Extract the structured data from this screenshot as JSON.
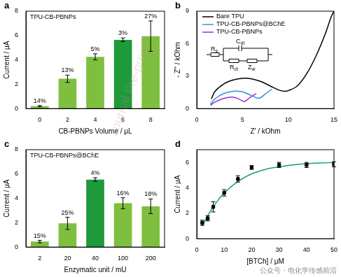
{
  "chart_data": [
    {
      "type": "bar",
      "panel_label": "a",
      "annotation": "TPU-CB-PBNPs",
      "x_label": "CB-PBNPs Volume / μL",
      "y_label": "Current / μA",
      "categories": [
        0,
        2,
        4,
        6,
        8
      ],
      "values": [
        0.2,
        2.45,
        4.25,
        5.65,
        5.95
      ],
      "errors": [
        0.05,
        0.3,
        0.25,
        0.15,
        1.25
      ],
      "rsd_labels": [
        "14%",
        "13%",
        "5%",
        "3%",
        "27%"
      ],
      "colors": [
        "#7fbf3f",
        "#7fbf3f",
        "#7fbf3f",
        "#1f9a3a",
        "#7fbf3f"
      ],
      "ylim": [
        0,
        8
      ],
      "yticks": [
        0,
        2,
        4,
        6,
        8
      ],
      "grid": false
    },
    {
      "type": "line",
      "panel_label": "b",
      "x_label": "Z' / kOhm",
      "y_label": "- Z'' / kOhm",
      "xlim": [
        0,
        15
      ],
      "xticks": [
        0,
        5,
        10,
        15
      ],
      "ylim": [
        0,
        9
      ],
      "yticks": [
        0,
        3,
        6,
        9
      ],
      "legend": "upper left",
      "grid": false,
      "circuit_labels": [
        "Rs",
        "Cdl",
        "Rct",
        "Zw"
      ],
      "series": [
        {
          "name": "Bare TPU",
          "color": "#000000",
          "marker": "none",
          "x": [
            1.6,
            2.0,
            3.0,
            4.0,
            5.0,
            6.0,
            7.0,
            8.0,
            9.0,
            9.6,
            10.0,
            11.0,
            12.0,
            13.0,
            14.0,
            14.7,
            15.0
          ],
          "values": [
            0.9,
            1.6,
            2.3,
            2.65,
            2.8,
            2.75,
            2.5,
            2.1,
            1.7,
            1.6,
            1.65,
            2.1,
            3.2,
            4.8,
            6.8,
            8.5,
            9.0
          ]
        },
        {
          "name": "TPU-CB-PBNPs@BChE",
          "color": "#3a8fd9",
          "marker": "none",
          "x": [
            1.5,
            2.0,
            3.0,
            4.0,
            5.0,
            6.0,
            6.8,
            7.5,
            8.2
          ],
          "values": [
            0.4,
            0.9,
            1.4,
            1.6,
            1.55,
            1.2,
            0.95,
            1.35,
            1.8
          ]
        },
        {
          "name": "TPU-CB-PBNPs",
          "color": "#9b30d9",
          "marker": "none",
          "x": [
            1.5,
            2.0,
            3.0,
            4.0,
            4.8,
            5.2,
            5.8,
            6.5
          ],
          "values": [
            0.3,
            0.6,
            0.95,
            1.05,
            0.8,
            0.65,
            1.0,
            1.4
          ]
        }
      ]
    },
    {
      "type": "bar",
      "panel_label": "c",
      "annotation": "TPU-CB-PBNPs@BChE",
      "x_label": "Enzymatic unit / mU",
      "y_label": "Current / μA",
      "categories": [
        2,
        20,
        40,
        100,
        200
      ],
      "values": [
        0.45,
        1.95,
        5.55,
        3.6,
        3.35
      ],
      "errors": [
        0.1,
        0.5,
        0.15,
        0.45,
        0.6
      ],
      "rsd_labels": [
        "15%",
        "25%",
        "4%",
        "16%",
        "18%"
      ],
      "colors": [
        "#7fbf3f",
        "#7fbf3f",
        "#1f9a3a",
        "#7fbf3f",
        "#7fbf3f"
      ],
      "ylim": [
        0,
        8
      ],
      "yticks": [
        0,
        2,
        4,
        6,
        8
      ],
      "grid": false
    },
    {
      "type": "scatter",
      "panel_label": "d",
      "x_label": "[BTCh] / μM",
      "y_label": "Current / μA",
      "xlim": [
        0,
        50
      ],
      "xticks": [
        0,
        10,
        20,
        30,
        40,
        50
      ],
      "ylim": [
        0,
        7
      ],
      "yticks": [
        0,
        2,
        4,
        6
      ],
      "grid": false,
      "series": [
        {
          "type": "scatter",
          "color": "#000000",
          "marker": "square",
          "x": [
            2,
            4,
            6,
            10,
            15,
            20,
            30,
            40,
            50
          ],
          "values": [
            1.25,
            1.6,
            2.5,
            3.6,
            4.7,
            5.6,
            5.8,
            5.8,
            5.85
          ],
          "errors": [
            0.2,
            0.2,
            0.4,
            0.25,
            0.25,
            0.15,
            0.2,
            0.2,
            0.2
          ]
        },
        {
          "type": "line",
          "color": "#1a9e77",
          "marker": "none",
          "x": [
            2,
            4,
            6,
            8,
            10,
            15,
            20,
            25,
            30,
            35,
            40,
            45,
            50
          ],
          "values": [
            1.0,
            1.8,
            2.5,
            3.1,
            3.6,
            4.5,
            5.1,
            5.45,
            5.65,
            5.8,
            5.9,
            5.95,
            6.0
          ]
        }
      ]
    }
  ],
  "watermarks": [
    "Journal Pre-proof",
    "公众号 · 电化学传感前沿"
  ]
}
